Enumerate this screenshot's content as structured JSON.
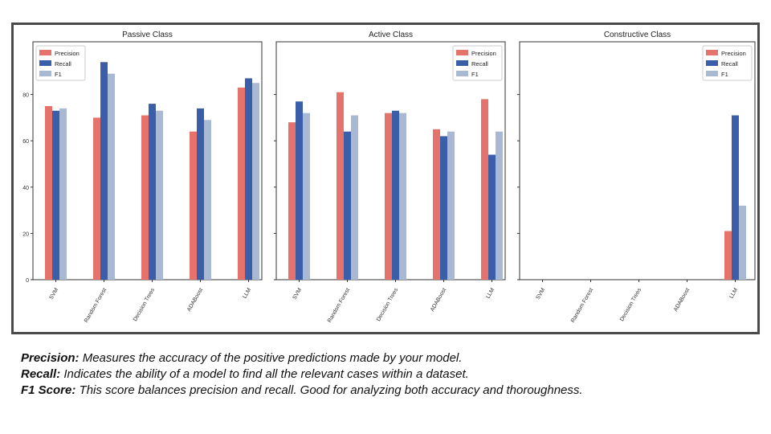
{
  "colors": {
    "precision": "#e5736c",
    "recall": "#3b5ea8",
    "f1": "#a9b9d4",
    "axis": "#333333"
  },
  "chart_data": [
    {
      "type": "bar",
      "title": "Passive Class",
      "categories": [
        "SVM",
        "Random Forest",
        "Decision Trees",
        "ADABoost",
        "LLM"
      ],
      "series": [
        {
          "name": "Precision",
          "values": [
            75,
            70,
            71,
            64,
            83
          ]
        },
        {
          "name": "Recall",
          "values": [
            73,
            94,
            76,
            74,
            87
          ]
        },
        {
          "name": "F1",
          "values": [
            74,
            89,
            73,
            69,
            85
          ]
        }
      ],
      "ylim": [
        0,
        100
      ],
      "yticks": [
        0,
        20,
        40,
        60,
        80
      ],
      "show_yticklabels": true,
      "legend": "top-left",
      "grid": false
    },
    {
      "type": "bar",
      "title": "Active Class",
      "categories": [
        "SVM",
        "Random Forest",
        "Decision Trees",
        "ADABoost",
        "LLM"
      ],
      "series": [
        {
          "name": "Precision",
          "values": [
            68,
            81,
            72,
            65,
            78
          ]
        },
        {
          "name": "Recall",
          "values": [
            77,
            64,
            73,
            62,
            54
          ]
        },
        {
          "name": "F1",
          "values": [
            72,
            71,
            72,
            64,
            64
          ]
        }
      ],
      "ylim": [
        0,
        100
      ],
      "yticks": [
        0,
        20,
        40,
        60,
        80
      ],
      "show_yticklabels": false,
      "legend": "top-right",
      "grid": false
    },
    {
      "type": "bar",
      "title": "Constructive Class",
      "categories": [
        "SVM",
        "Random Forest",
        "Decision Trees",
        "ADABoost",
        "LLM"
      ],
      "series": [
        {
          "name": "Precision",
          "values": [
            0,
            0,
            0,
            0,
            21
          ]
        },
        {
          "name": "Recall",
          "values": [
            0,
            0,
            0,
            0,
            71
          ]
        },
        {
          "name": "F1",
          "values": [
            0,
            0,
            0,
            0,
            32
          ]
        }
      ],
      "ylim": [
        0,
        100
      ],
      "yticks": [
        0,
        20,
        40,
        60,
        80
      ],
      "show_yticklabels": false,
      "legend": "top-right",
      "grid": false
    }
  ],
  "notes": [
    {
      "term": "Precision:",
      "text": " Measures the accuracy of the positive predictions made by your model."
    },
    {
      "term": "Recall:",
      "text": " Indicates the ability of a model to find all the relevant cases within a dataset."
    },
    {
      "term": "F1 Score:",
      "text": " This score balances precision and recall. Good for analyzing both accuracy and thoroughness."
    }
  ]
}
